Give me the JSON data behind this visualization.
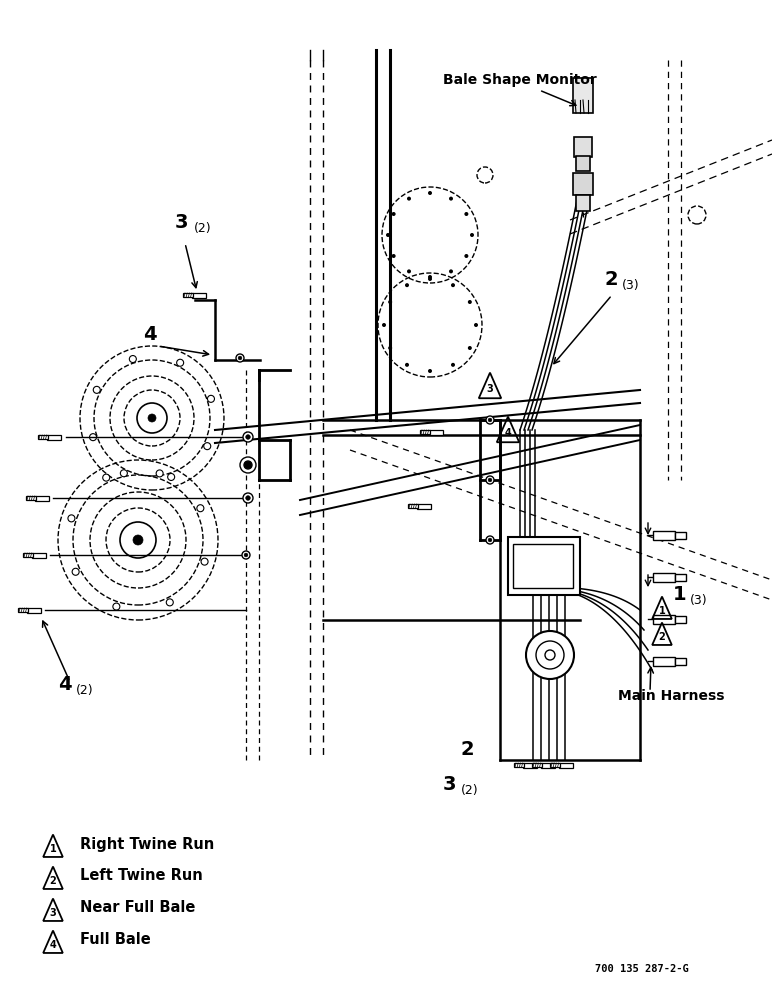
{
  "bg_color": "#ffffff",
  "legend_items": [
    {
      "symbol": "1",
      "label": "Right Twine Run"
    },
    {
      "symbol": "2",
      "label": "Left Twine Run"
    },
    {
      "symbol": "3",
      "label": "Near Full Bale"
    },
    {
      "symbol": "4",
      "label": "Full Bale"
    }
  ],
  "bale_shape_monitor": "Bale Shape Monitor",
  "main_harness": "Main Harness",
  "part_number": "700 135 287-2-G",
  "text_color": "#000000",
  "line_color": "#000000"
}
